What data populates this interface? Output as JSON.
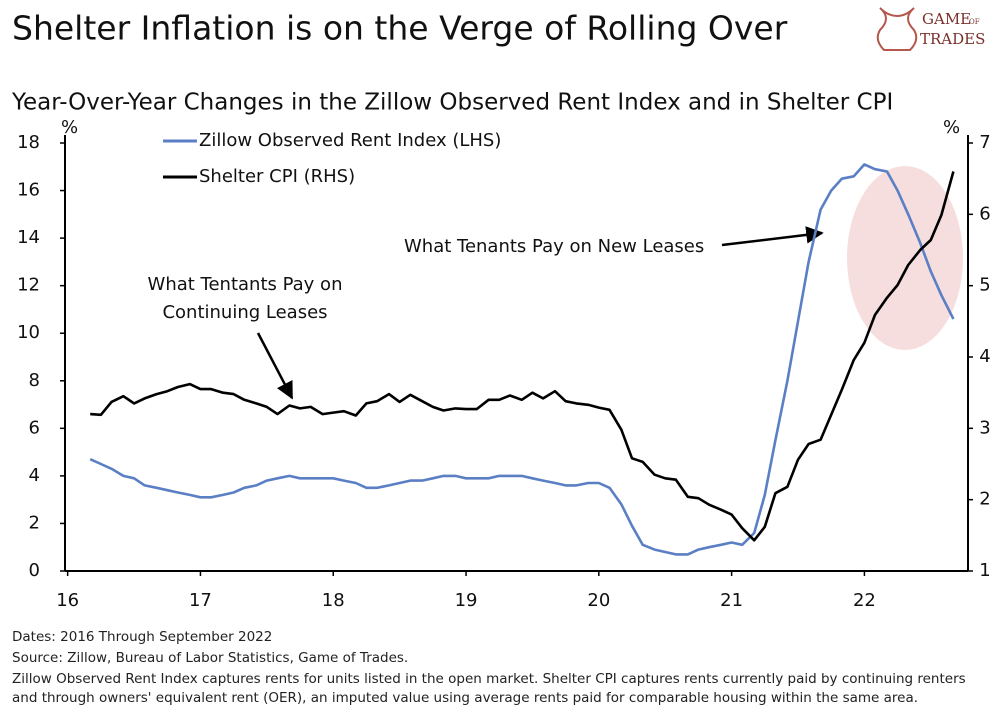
{
  "chart_data": {
    "type": "line",
    "title": "Shelter Inflation is on the Verge of Rolling Over",
    "subtitle": "Year-Over-Year Changes in the Zillow Observed Rent Index and in Shelter CPI",
    "logo": [
      "GAME",
      "OF",
      "TRADES"
    ],
    "ylabel": "%",
    "y2label": "%",
    "x": [
      16.17,
      16.25,
      16.33,
      16.42,
      16.5,
      16.58,
      16.67,
      16.75,
      16.83,
      16.92,
      17,
      17.08,
      17.17,
      17.25,
      17.33,
      17.42,
      17.5,
      17.58,
      17.67,
      17.75,
      17.83,
      17.92,
      18,
      18.08,
      18.17,
      18.25,
      18.33,
      18.42,
      18.5,
      18.58,
      18.67,
      18.75,
      18.83,
      18.92,
      19,
      19.08,
      19.17,
      19.25,
      19.33,
      19.42,
      19.5,
      19.58,
      19.67,
      19.75,
      19.83,
      19.92,
      20,
      20.08,
      20.17,
      20.25,
      20.33,
      20.42,
      20.5,
      20.58,
      20.67,
      20.75,
      20.83,
      20.92,
      21,
      21.08,
      21.17,
      21.25,
      21.33,
      21.42,
      21.5,
      21.58,
      21.67,
      21.75,
      21.83,
      21.92,
      22,
      22.08,
      22.17,
      22.25,
      22.33,
      22.42,
      22.5,
      22.58,
      22.67
    ],
    "xlim": [
      15.98,
      22.78
    ],
    "xticks": [
      16,
      17,
      18,
      19,
      20,
      21,
      22
    ],
    "ylim": [
      0,
      18
    ],
    "yticks": [
      0,
      2,
      4,
      6,
      8,
      10,
      12,
      14,
      16,
      18
    ],
    "y2lim": [
      1,
      7
    ],
    "y2ticks": [
      1,
      2,
      3,
      4,
      5,
      6,
      7
    ],
    "legend": "upper left",
    "series": [
      {
        "name": "Zillow Observed Rent Index (LHS)",
        "color": "#5b7fc4",
        "values": [
          4.7,
          4.5,
          4.3,
          4.0,
          3.9,
          3.6,
          3.5,
          3.4,
          3.3,
          3.2,
          3.1,
          3.1,
          3.2,
          3.3,
          3.5,
          3.6,
          3.8,
          3.9,
          4.0,
          3.9,
          3.9,
          3.9,
          3.9,
          3.8,
          3.7,
          3.5,
          3.5,
          3.6,
          3.7,
          3.8,
          3.8,
          3.9,
          4.0,
          4.0,
          3.9,
          3.9,
          3.9,
          4.0,
          4.0,
          4.0,
          3.9,
          3.8,
          3.7,
          3.6,
          3.6,
          3.7,
          3.7,
          3.5,
          2.8,
          1.9,
          1.1,
          0.9,
          0.8,
          0.7,
          0.7,
          0.9,
          1.0,
          1.1,
          1.2,
          1.1,
          1.6,
          3.2,
          5.5,
          8.0,
          10.5,
          13.0,
          15.2,
          16.0,
          16.5,
          16.6,
          17.1,
          16.9,
          16.8,
          16.0,
          15.0,
          13.8,
          12.6,
          11.6,
          10.6
        ]
      },
      {
        "name": "Shelter CPI (RHS)",
        "color": "#000000",
        "axis": "y2",
        "values": [
          3.2,
          3.19,
          3.37,
          3.45,
          3.35,
          3.42,
          3.48,
          3.52,
          3.58,
          3.62,
          3.55,
          3.55,
          3.5,
          3.48,
          3.4,
          3.35,
          3.3,
          3.2,
          3.32,
          3.28,
          3.3,
          3.2,
          3.22,
          3.24,
          3.18,
          3.35,
          3.38,
          3.48,
          3.37,
          3.47,
          3.38,
          3.3,
          3.25,
          3.28,
          3.27,
          3.27,
          3.4,
          3.4,
          3.46,
          3.4,
          3.5,
          3.42,
          3.52,
          3.38,
          3.35,
          3.33,
          3.29,
          3.26,
          2.98,
          2.58,
          2.53,
          2.35,
          2.3,
          2.28,
          2.04,
          2.02,
          1.93,
          1.86,
          1.79,
          1.6,
          1.43,
          1.62,
          2.09,
          2.18,
          2.56,
          2.78,
          2.84,
          3.19,
          3.54,
          3.96,
          4.2,
          4.59,
          4.83,
          5.01,
          5.29,
          5.5,
          5.64,
          5.99,
          6.6
        ]
      }
    ],
    "annotations": [
      {
        "text": [
          "What Tentants Pay on",
          "Continuing Leases"
        ]
      },
      {
        "text": [
          "What Tenants Pay on New Leases"
        ]
      }
    ],
    "footer": [
      "Dates: 2016 Through September 2022",
      "Source: Zillow, Bureau of Labor Statistics, Game of Trades.",
      "Zillow Observed Rent Index captures rents for units listed in the open market. Shelter CPI captures rents currently paid by continuing renters and through owners' equivalent rent (OER), an imputed value using average rents paid for comparable housing within the same area."
    ]
  }
}
